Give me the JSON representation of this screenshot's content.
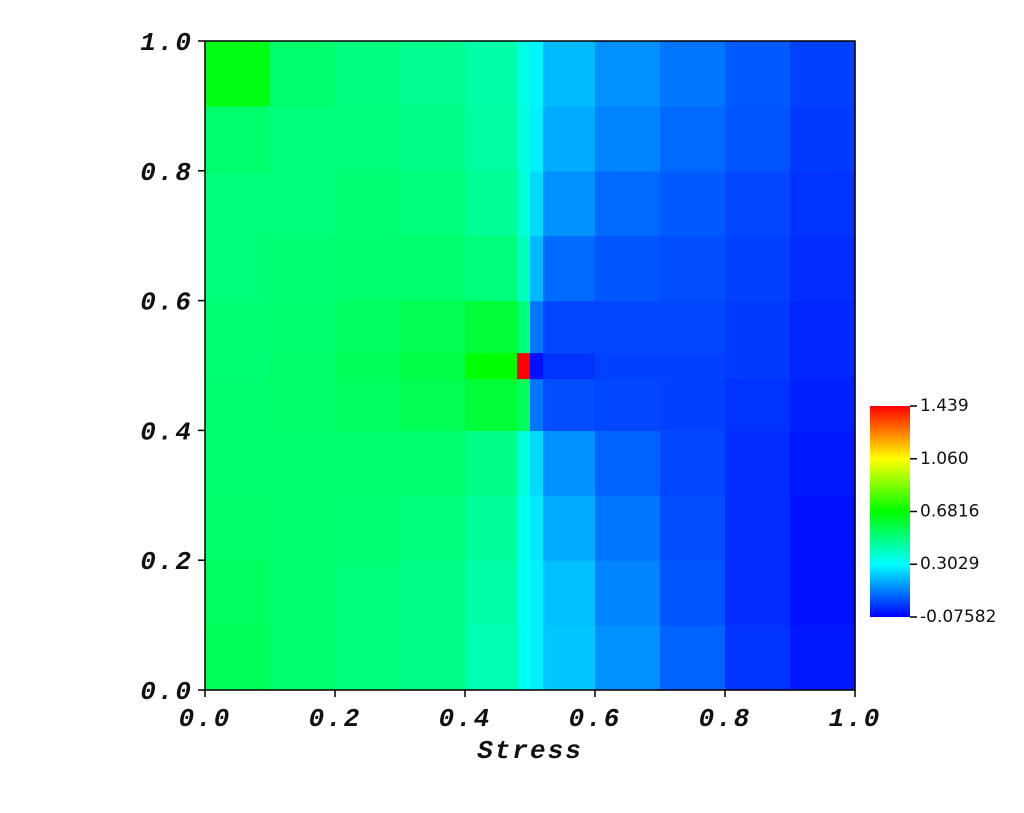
{
  "chart_data": {
    "type": "heatmap",
    "x_label": "Stress",
    "xlim": [
      0,
      1
    ],
    "ylim": [
      0,
      1
    ],
    "xticks": [
      {
        "value": 0,
        "label": "0.0"
      },
      0.2,
      0.4,
      0.6,
      0.8,
      {
        "value": 1,
        "label": "1.0"
      }
    ],
    "yticks": [
      {
        "value": 0,
        "label": "0.0"
      },
      0.2,
      0.4,
      0.6,
      0.8,
      {
        "value": 1,
        "label": "1.0"
      }
    ],
    "xbins": [
      0,
      0.1,
      0.2,
      0.3,
      0.4,
      0.48,
      0.5,
      0.52,
      0.6,
      0.7,
      0.8,
      0.9,
      1
    ],
    "ybins": [
      0,
      0.1,
      0.2,
      0.3,
      0.4,
      0.48,
      0.52,
      0.6,
      0.7,
      0.8,
      0.9,
      1
    ],
    "z": [
      [
        0.55,
        0.52,
        0.5,
        0.48,
        0.42,
        0.32,
        0.28,
        0.22,
        0.14,
        0.07,
        0.0,
        -0.04
      ],
      [
        0.54,
        0.52,
        0.5,
        0.48,
        0.43,
        0.32,
        0.28,
        0.21,
        0.12,
        0.05,
        -0.01,
        -0.05
      ],
      [
        0.53,
        0.52,
        0.51,
        0.5,
        0.45,
        0.33,
        0.27,
        0.18,
        0.1,
        0.04,
        -0.01,
        -0.05
      ],
      [
        0.52,
        0.52,
        0.52,
        0.52,
        0.48,
        0.35,
        0.25,
        0.14,
        0.07,
        0.03,
        -0.01,
        -0.04
      ],
      [
        0.52,
        0.53,
        0.54,
        0.56,
        0.6,
        0.55,
        0.1,
        0.04,
        0.03,
        0.02,
        0.0,
        -0.03
      ],
      [
        0.51,
        0.53,
        0.55,
        0.58,
        0.68,
        1.439,
        -0.05,
        0.0,
        0.02,
        0.02,
        0.01,
        -0.02
      ],
      [
        0.51,
        0.52,
        0.54,
        0.56,
        0.6,
        0.5,
        0.1,
        0.03,
        0.03,
        0.03,
        0.01,
        -0.02
      ],
      [
        0.5,
        0.51,
        0.52,
        0.52,
        0.5,
        0.4,
        0.2,
        0.08,
        0.05,
        0.04,
        0.02,
        -0.01
      ],
      [
        0.5,
        0.5,
        0.51,
        0.5,
        0.46,
        0.36,
        0.25,
        0.14,
        0.08,
        0.06,
        0.03,
        0.0
      ],
      [
        0.52,
        0.5,
        0.5,
        0.48,
        0.44,
        0.35,
        0.28,
        0.18,
        0.12,
        0.08,
        0.05,
        0.01
      ],
      [
        0.65,
        0.52,
        0.49,
        0.47,
        0.43,
        0.34,
        0.29,
        0.2,
        0.14,
        0.1,
        0.06,
        0.02
      ]
    ],
    "zlim": [
      -0.07582,
      1.439
    ],
    "colorscale": [
      "#0000ff",
      "#00ffff",
      "#00ff00",
      "#ffff00",
      "#ff0000"
    ],
    "colorbar_ticks": [
      -0.07582,
      0.3029,
      0.6816,
      {
        "value": 1.06,
        "label": "1.060"
      },
      1.439
    ]
  }
}
